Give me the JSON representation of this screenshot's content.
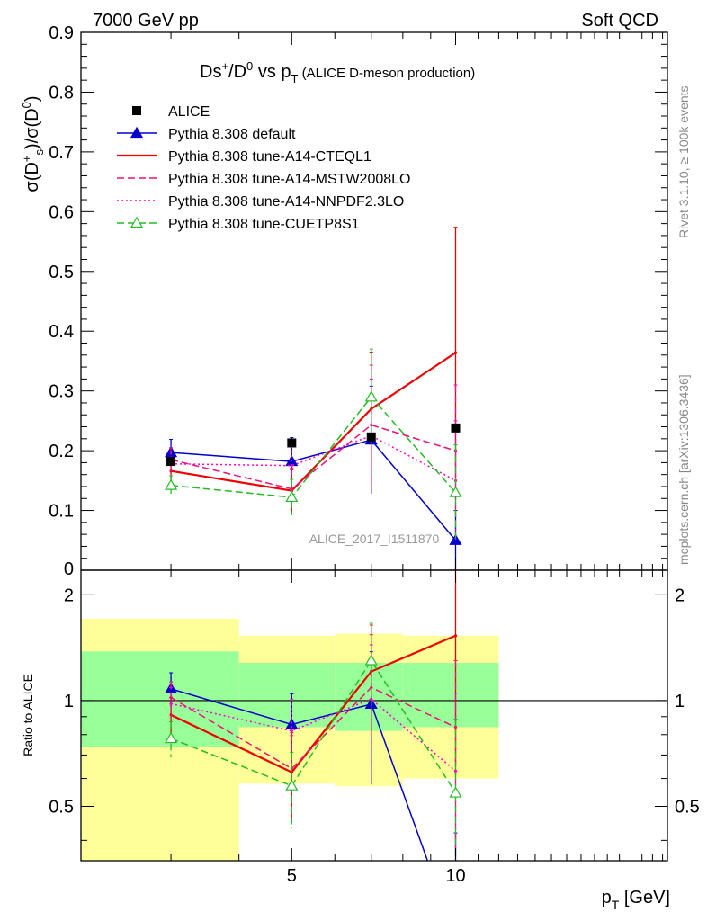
{
  "header": {
    "left": "7000 GeV pp",
    "right": "Soft QCD"
  },
  "side": {
    "rivet": "Rivet 3.1.10, ≥ 100k events",
    "mcplots": "mcplots.cern.ch [arXiv:1306.3436]"
  },
  "chart_data": {
    "type": "line",
    "title": "Ds⁺/D⁰ vs p_T (ALICE D-meson production)",
    "watermark": "ALICE_2017_I1511870",
    "xlabel": "p_T [GeV]",
    "xscale": "log",
    "xlim": [
      2.05,
      24.5
    ],
    "xticks": [
      5,
      10
    ],
    "x": [
      3,
      5,
      7,
      10
    ],
    "x_edges": [
      2,
      4,
      6,
      8,
      12
    ],
    "main": {
      "ylabel": "σ(D⁺_s)/σ(D⁰)",
      "ylim": [
        0,
        0.9
      ],
      "yticks": [
        "0",
        "0.1",
        "0.2",
        "0.3",
        "0.4",
        "0.5",
        "0.6",
        "0.7",
        "0.8",
        "0.9"
      ],
      "data": {
        "name": "ALICE",
        "values": [
          0.182,
          0.213,
          0.223,
          0.238
        ]
      },
      "series": [
        {
          "name": "Pythia 8.308 default",
          "color": "#0000cc",
          "style": "solid",
          "marker": "triangle-filled",
          "values": [
            0.197,
            0.182,
            0.218,
            0.05
          ],
          "err": [
            0.022,
            0.04,
            0.09,
            0.05
          ]
        },
        {
          "name": "Pythia 8.308 tune-A14-CTEQL1",
          "color": "#ee0000",
          "style": "solid",
          "marker": "none",
          "values": [
            0.166,
            0.133,
            0.27,
            0.364
          ],
          "err": [
            0.02,
            0.035,
            0.095,
            0.21
          ]
        },
        {
          "name": "Pythia 8.308 tune-A14-MSTW2008LO",
          "color": "#ee1177",
          "style": "dashed",
          "marker": "none",
          "values": [
            0.185,
            0.136,
            0.243,
            0.2
          ],
          "err": [
            0.02,
            0.035,
            0.1,
            0.11
          ]
        },
        {
          "name": "Pythia 8.308 tune-A14-NNPDF2.3LO",
          "color": "#ff00cc",
          "style": "dotted",
          "marker": "none",
          "values": [
            0.178,
            0.175,
            0.225,
            0.15
          ],
          "err": [
            0.02,
            0.04,
            0.095,
            0.1
          ]
        },
        {
          "name": "Pythia 8.308 tune-CUETP8S1",
          "color": "#22bb22",
          "style": "dashed",
          "marker": "triangle-open",
          "values": [
            0.142,
            0.122,
            0.29,
            0.13
          ],
          "err": [
            0.016,
            0.03,
            0.08,
            0.08
          ]
        }
      ]
    },
    "ratio": {
      "ylabel": "Ratio to ALICE",
      "ylim": [
        0.35,
        2.35
      ],
      "yticks": [
        "0.5",
        "1",
        "2"
      ],
      "band_inner": [
        [
          0.74,
          1.38
        ],
        [
          0.84,
          1.28
        ],
        [
          0.82,
          1.28
        ],
        [
          0.84,
          1.28
        ]
      ],
      "band_outer": [
        [
          0.35,
          1.71
        ],
        [
          0.58,
          1.53
        ],
        [
          0.57,
          1.55
        ],
        [
          0.6,
          1.53
        ]
      ],
      "series": [
        {
          "name": "Pythia 8.308 default",
          "values": [
            1.08,
            0.855,
            0.977,
            0.21
          ],
          "err": [
            0.12,
            0.19,
            0.4,
            0.21
          ]
        },
        {
          "name": "Pythia 8.308 tune-A14-CTEQL1",
          "values": [
            0.91,
            0.625,
            1.21,
            1.53
          ],
          "err": [
            0.11,
            0.17,
            0.43,
            0.88
          ]
        },
        {
          "name": "Pythia 8.308 tune-A14-MSTW2008LO",
          "values": [
            1.02,
            0.64,
            1.09,
            0.84
          ],
          "err": [
            0.11,
            0.17,
            0.45,
            0.46
          ]
        },
        {
          "name": "Pythia 8.308 tune-A14-NNPDF2.3LO",
          "values": [
            0.98,
            0.82,
            1.01,
            0.63
          ],
          "err": [
            0.11,
            0.19,
            0.43,
            0.42
          ]
        },
        {
          "name": "Pythia 8.308 tune-CUETP8S1",
          "values": [
            0.78,
            0.572,
            1.3,
            0.546
          ],
          "err": [
            0.09,
            0.14,
            0.36,
            0.34
          ]
        }
      ]
    }
  }
}
